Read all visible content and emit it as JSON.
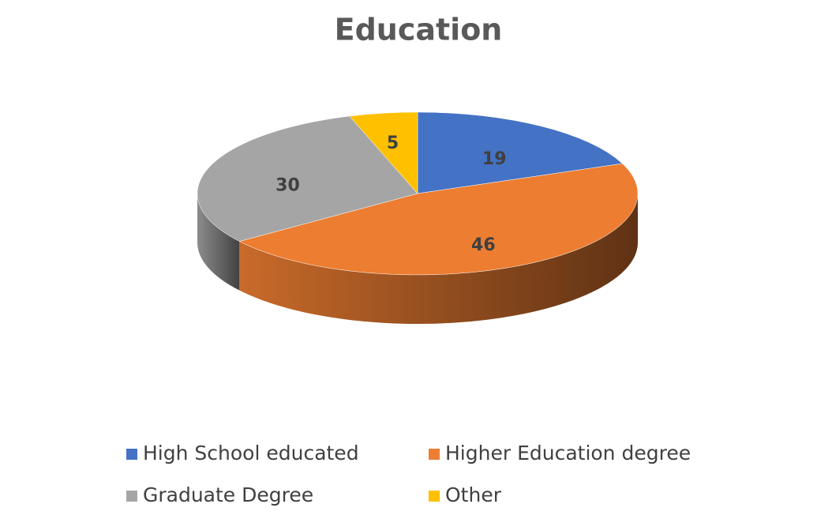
{
  "chart_data": {
    "type": "pie3d",
    "title": "Education",
    "categories": [
      "High School educated",
      "Higher Education degree",
      "Graduate Degree",
      "Other"
    ],
    "values": [
      19,
      46,
      30,
      5
    ],
    "colors": [
      "#4472c4",
      "#ed7d31",
      "#a5a5a5",
      "#ffc000"
    ],
    "legend": "bottom"
  }
}
